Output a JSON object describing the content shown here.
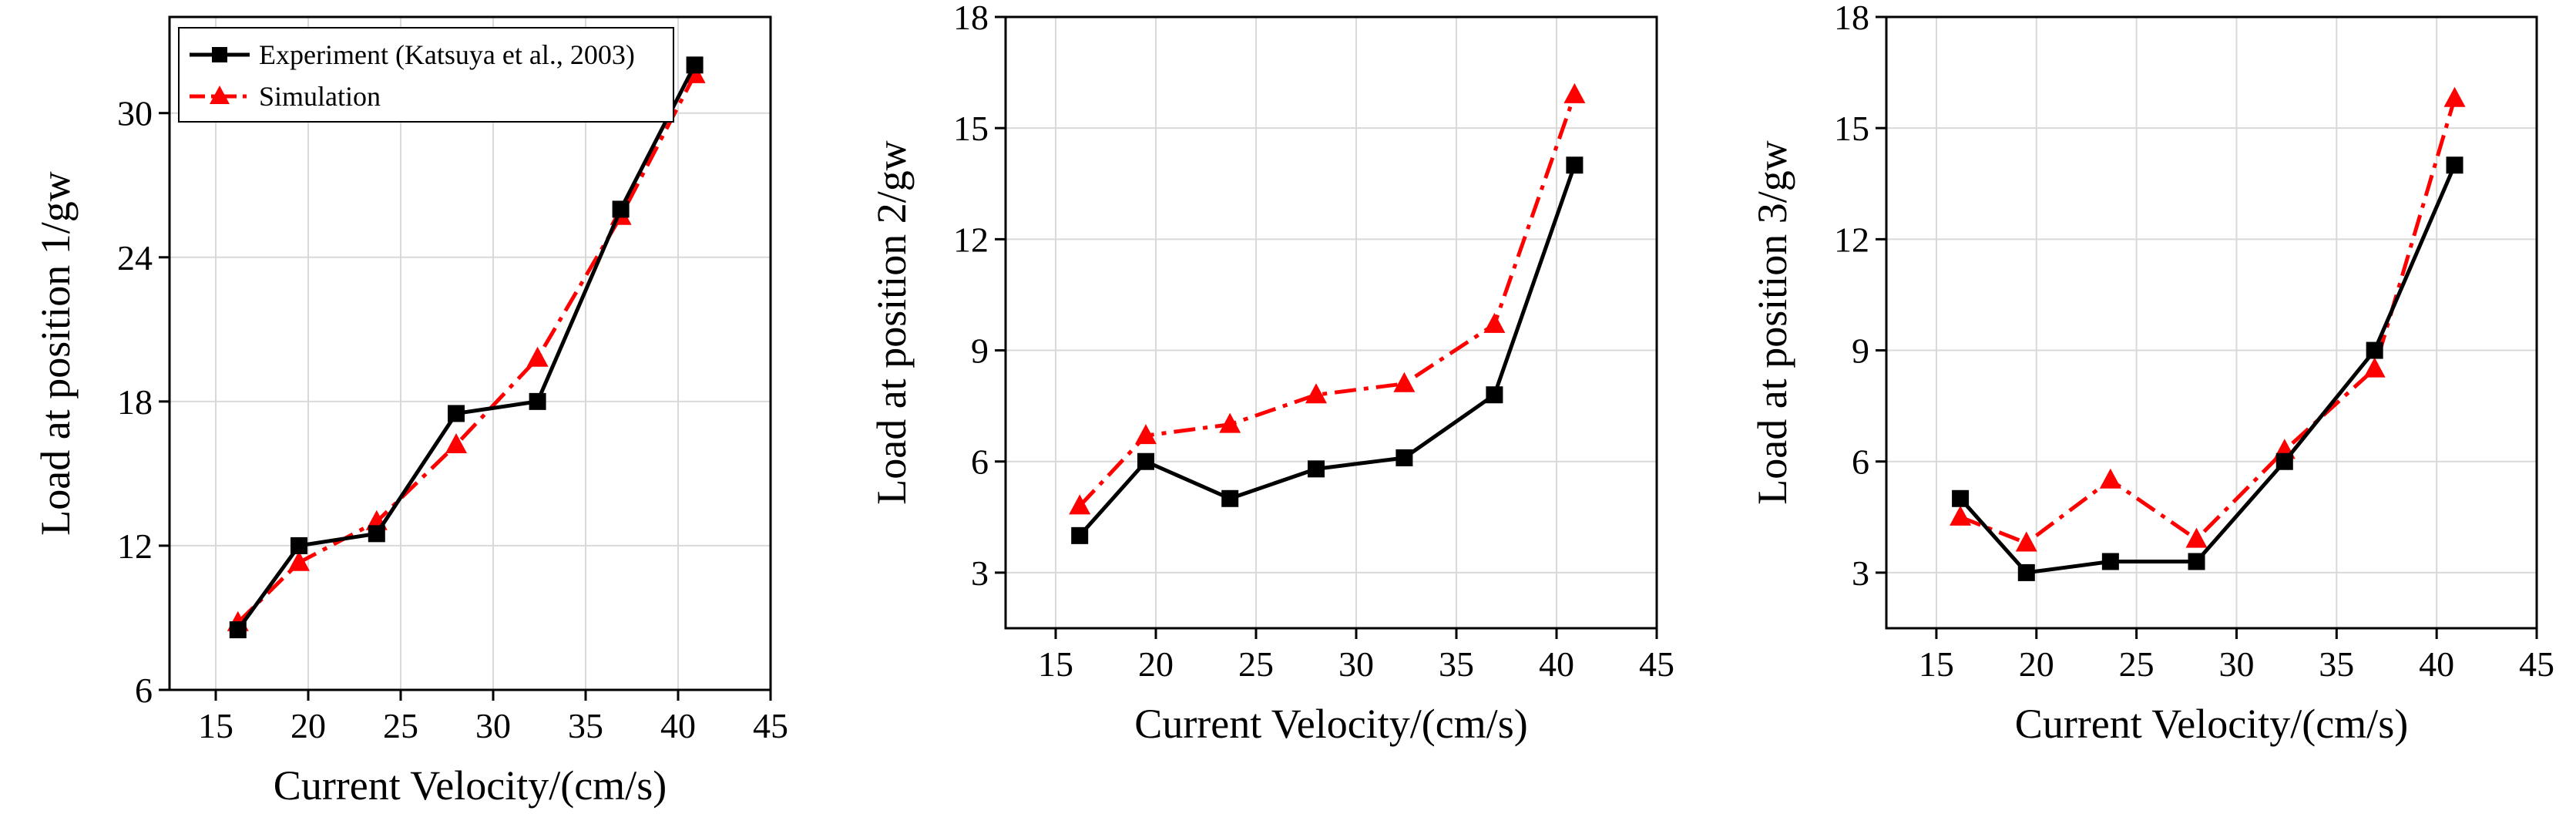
{
  "colors": {
    "experiment": "#000000",
    "simulation": "#ff0000",
    "grid": "#d9d9d9"
  },
  "chart_data": [
    {
      "type": "line",
      "xlabel": "Current Velocity/(cm/s)",
      "ylabel": "Load at position 1/gw",
      "xlim": [
        12.5,
        45
      ],
      "ylim": [
        6,
        34
      ],
      "xticks": [
        15,
        20,
        25,
        30,
        35,
        40,
        45
      ],
      "yticks": [
        6,
        12,
        18,
        24,
        30
      ],
      "ytick_labels": [
        "6",
        "12",
        "18",
        "24",
        "30"
      ],
      "grid": true,
      "legend": {
        "position": "top-left",
        "entries": [
          "Experiment (Katsuya et al., 2003)",
          "Simulation"
        ]
      },
      "series": [
        {
          "name": "Experiment (Katsuya et al., 2003)",
          "style": "solid",
          "marker": "square",
          "x": [
            16.2,
            19.5,
            23.7,
            28.0,
            32.4,
            36.9,
            40.9
          ],
          "y": [
            8.5,
            12.0,
            12.5,
            17.5,
            18.0,
            26.0,
            32.0
          ]
        },
        {
          "name": "Simulation",
          "style": "dashdot",
          "marker": "triangle",
          "x": [
            16.2,
            19.5,
            23.7,
            28.0,
            32.4,
            36.9,
            40.9
          ],
          "y": [
            8.8,
            11.3,
            13.0,
            16.2,
            19.8,
            25.7,
            31.6
          ]
        }
      ]
    },
    {
      "type": "line",
      "xlabel": "Current Velocity/(cm/s)",
      "ylabel": "Load at position 2/gw",
      "xlim": [
        12.5,
        45
      ],
      "ylim": [
        1.5,
        18
      ],
      "xticks": [
        15,
        20,
        25,
        30,
        35,
        40,
        45
      ],
      "yticks": [
        3,
        6,
        9,
        12,
        15,
        18
      ],
      "ytick_labels": [
        "3",
        "6",
        "9",
        "12",
        "15",
        "18"
      ],
      "grid": true,
      "legend": null,
      "series": [
        {
          "name": "Experiment (Katsuya et al., 2003)",
          "style": "solid",
          "marker": "square",
          "x": [
            16.2,
            19.5,
            23.7,
            28.0,
            32.4,
            36.9,
            40.9
          ],
          "y": [
            4.0,
            6.0,
            5.0,
            5.8,
            6.1,
            7.8,
            14.0
          ]
        },
        {
          "name": "Simulation",
          "style": "dashdot",
          "marker": "triangle",
          "x": [
            16.2,
            19.5,
            23.7,
            28.0,
            32.4,
            36.9,
            40.9
          ],
          "y": [
            4.8,
            6.7,
            7.0,
            7.8,
            8.1,
            9.7,
            15.9
          ]
        }
      ]
    },
    {
      "type": "line",
      "xlabel": "Current Velocity/(cm/s)",
      "ylabel": "Load at position 3/gw",
      "xlim": [
        12.5,
        45
      ],
      "ylim": [
        1.5,
        18
      ],
      "xticks": [
        15,
        20,
        25,
        30,
        35,
        40,
        45
      ],
      "yticks": [
        3,
        6,
        9,
        12,
        15,
        18
      ],
      "ytick_labels": [
        "3",
        "6",
        "9",
        "12",
        "15",
        "18"
      ],
      "grid": true,
      "legend": null,
      "series": [
        {
          "name": "Experiment (Katsuya et al., 2003)",
          "style": "solid",
          "marker": "square",
          "x": [
            16.2,
            19.5,
            23.7,
            28.0,
            32.4,
            36.9,
            40.9
          ],
          "y": [
            5.0,
            3.0,
            3.3,
            3.3,
            6.0,
            9.0,
            14.0
          ]
        },
        {
          "name": "Simulation",
          "style": "dashdot",
          "marker": "triangle",
          "x": [
            16.2,
            19.5,
            23.7,
            28.0,
            32.4,
            36.9,
            40.9
          ],
          "y": [
            4.5,
            3.8,
            5.5,
            3.9,
            6.3,
            8.5,
            15.8
          ]
        }
      ]
    }
  ]
}
